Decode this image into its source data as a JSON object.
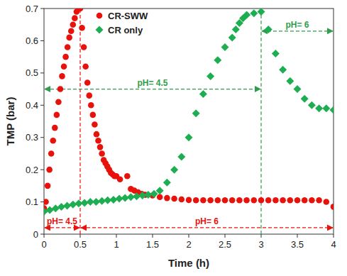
{
  "chart_data": {
    "type": "scatter",
    "x_label": "Time (h)",
    "y_label": "TMP (bar)",
    "xlim": [
      0,
      4
    ],
    "ylim": [
      0,
      0.7
    ],
    "xticks": [
      0,
      0.5,
      1,
      1.5,
      2,
      2.5,
      3,
      3.5,
      4
    ],
    "yticks": [
      0,
      0.1,
      0.2,
      0.3,
      0.4,
      0.5,
      0.6,
      0.7
    ],
    "grid": false,
    "legend": "upper left",
    "series": [
      {
        "name": "CR-SWW",
        "color": "#e8120c",
        "marker": "circle",
        "x": [
          0,
          0.025,
          0.05,
          0.075,
          0.1,
          0.125,
          0.15,
          0.175,
          0.2,
          0.225,
          0.25,
          0.275,
          0.3,
          0.325,
          0.35,
          0.375,
          0.4,
          0.425,
          0.45,
          0.475,
          0.5,
          0.525,
          0.55,
          0.575,
          0.6,
          0.625,
          0.65,
          0.675,
          0.7,
          0.725,
          0.75,
          0.775,
          0.8,
          0.825,
          0.85,
          0.875,
          0.9,
          0.925,
          0.95,
          0.975,
          1.0,
          1.05,
          1.15,
          1.2,
          1.25,
          1.3,
          1.35,
          1.4,
          1.5,
          1.6,
          1.7,
          1.8,
          1.9,
          2.0,
          2.1,
          2.2,
          2.3,
          2.4,
          2.5,
          2.6,
          2.7,
          2.8,
          2.9,
          3.0,
          3.1,
          3.2,
          3.3,
          3.4,
          3.5,
          3.6,
          3.7,
          3.8,
          3.9,
          4.0
        ],
        "values": [
          0.08,
          0.1,
          0.15,
          0.2,
          0.25,
          0.29,
          0.33,
          0.37,
          0.41,
          0.45,
          0.49,
          0.52,
          0.55,
          0.58,
          0.61,
          0.63,
          0.65,
          0.67,
          0.69,
          0.7,
          0.7,
          0.64,
          0.58,
          0.52,
          0.47,
          0.43,
          0.4,
          0.37,
          0.34,
          0.31,
          0.29,
          0.27,
          0.25,
          0.23,
          0.22,
          0.21,
          0.2,
          0.19,
          0.185,
          0.18,
          0.18,
          0.17,
          0.18,
          0.14,
          0.135,
          0.13,
          0.125,
          0.122,
          0.12,
          0.115,
          0.112,
          0.11,
          0.108,
          0.106,
          0.105,
          0.105,
          0.105,
          0.105,
          0.105,
          0.105,
          0.105,
          0.105,
          0.105,
          0.105,
          0.105,
          0.105,
          0.105,
          0.105,
          0.105,
          0.105,
          0.105,
          0.105,
          0.1,
          0.085
        ]
      },
      {
        "name": "CR only",
        "color": "#1eae52",
        "marker": "diamond",
        "x": [
          0,
          0.08,
          0.16,
          0.24,
          0.32,
          0.4,
          0.48,
          0.56,
          0.64,
          0.72,
          0.8,
          0.88,
          0.96,
          1.04,
          1.12,
          1.2,
          1.28,
          1.36,
          1.44,
          1.52,
          1.6,
          1.7,
          1.8,
          1.9,
          2.0,
          2.1,
          2.2,
          2.3,
          2.4,
          2.5,
          2.6,
          2.65,
          2.7,
          2.75,
          2.8,
          2.9,
          3.0,
          3.1,
          3.2,
          3.3,
          3.4,
          3.5,
          3.6,
          3.7,
          3.8,
          3.9,
          4.0
        ],
        "values": [
          0.07,
          0.075,
          0.08,
          0.085,
          0.088,
          0.092,
          0.095,
          0.097,
          0.1,
          0.1,
          0.103,
          0.105,
          0.107,
          0.11,
          0.112,
          0.115,
          0.117,
          0.12,
          0.122,
          0.125,
          0.135,
          0.16,
          0.2,
          0.24,
          0.3,
          0.375,
          0.435,
          0.49,
          0.54,
          0.58,
          0.61,
          0.635,
          0.655,
          0.67,
          0.68,
          0.685,
          0.69,
          0.635,
          0.56,
          0.51,
          0.475,
          0.45,
          0.42,
          0.4,
          0.39,
          0.39,
          0.385
        ]
      }
    ],
    "annotations": [
      {
        "text": "pH= 4.5",
        "color": "#2e9e4b",
        "x": [
          0,
          3
        ],
        "y": 0.45
      },
      {
        "text": "pH= 6",
        "color": "#2e9e4b",
        "x": [
          3,
          4
        ],
        "y": 0.63
      },
      {
        "text": "pH= 4.5",
        "color": "#e8120c",
        "x": [
          0,
          0.5
        ],
        "y": 0.02
      },
      {
        "text": "pH= 6",
        "color": "#e8120c",
        "x": [
          0.5,
          4
        ],
        "y": 0.02
      }
    ],
    "vlines": [
      {
        "x": 0.5,
        "y": [
          0,
          0.7
        ],
        "color": "#e8120c"
      },
      {
        "x": 3,
        "y": [
          0,
          0.69
        ],
        "color": "#2e9e4b"
      }
    ]
  }
}
